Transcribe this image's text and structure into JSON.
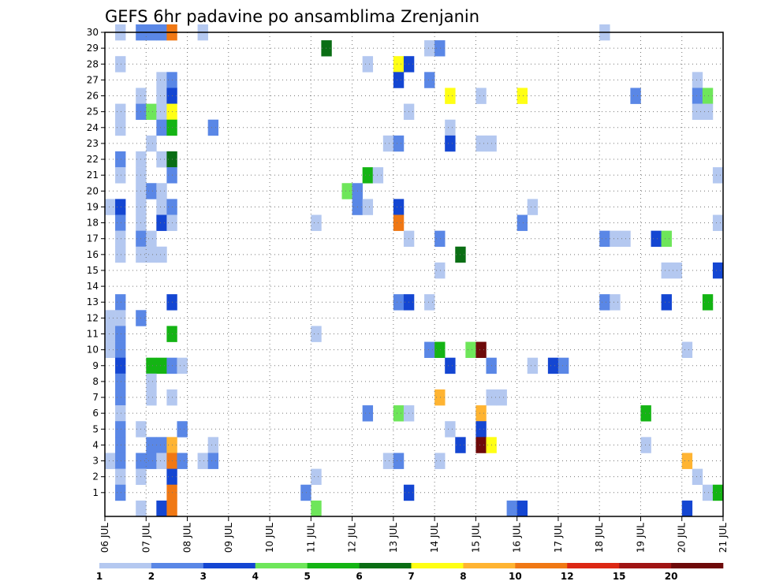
{
  "chart_data": {
    "type": "heatmap",
    "title": "GEFS 6hr padavine po ansamblima Zrenjanin",
    "y_tick_labels": [
      "1",
      "2",
      "3",
      "4",
      "5",
      "6",
      "7",
      "8",
      "9",
      "10",
      "11",
      "12",
      "13",
      "14",
      "15",
      "16",
      "17",
      "18",
      "19",
      "20",
      "21",
      "22",
      "23",
      "24",
      "25",
      "26",
      "27",
      "28",
      "29",
      "30"
    ],
    "x_tick_labels": [
      "06 JUL",
      "07 JUL",
      "08 JUL",
      "09 JUL",
      "10 JUL",
      "11 JUL",
      "12 JUL",
      "13 JUL",
      "14 JUL",
      "15 JUL",
      "16 JUL",
      "17 JUL",
      "18 JUL",
      "19 JUL",
      "20 JUL",
      "21 JUL"
    ],
    "ylim": [
      0,
      30
    ],
    "x_range_days": [
      0,
      15
    ],
    "grid": true,
    "colorbar": {
      "placement": "bottom",
      "boundaries": [
        "1",
        "2",
        "3",
        "4",
        "5",
        "6",
        "7",
        "8",
        "10",
        "12",
        "15",
        "20"
      ],
      "colors": [
        "#b4c8f0",
        "#5a87e6",
        "#1446d2",
        "#6ee65a",
        "#14b414",
        "#0a6e14",
        "#ffff14",
        "#ffb432",
        "#f07814",
        "#dc2814",
        "#a01414",
        "#6e0a0a"
      ]
    },
    "level_colors": [
      "#b4c8f0",
      "#5a87e6",
      "#1446d2",
      "#6ee65a",
      "#14b414",
      "#0a6e14",
      "#ffff14",
      "#ffb432",
      "#f07814",
      "#dc2814",
      "#a01414",
      "#6e0a0a"
    ],
    "cells": [
      {
        "m": 30,
        "s": 1,
        "l": 0
      },
      {
        "m": 30,
        "s": 3,
        "l": 1
      },
      {
        "m": 30,
        "s": 4,
        "l": 1
      },
      {
        "m": 30,
        "s": 5,
        "l": 1
      },
      {
        "m": 30,
        "s": 6,
        "l": 8
      },
      {
        "m": 30,
        "s": 9,
        "l": 0
      },
      {
        "m": 30,
        "s": 48,
        "l": 0
      },
      {
        "m": 29,
        "s": 21,
        "l": 5
      },
      {
        "m": 29,
        "s": 31,
        "l": 0
      },
      {
        "m": 29,
        "s": 32,
        "l": 1
      },
      {
        "m": 28,
        "s": 1,
        "l": 0
      },
      {
        "m": 28,
        "s": 25,
        "l": 0
      },
      {
        "m": 28,
        "s": 28,
        "l": 6
      },
      {
        "m": 28,
        "s": 29,
        "l": 2
      },
      {
        "m": 27,
        "s": 5,
        "l": 0
      },
      {
        "m": 27,
        "s": 6,
        "l": 1
      },
      {
        "m": 27,
        "s": 28,
        "l": 2
      },
      {
        "m": 27,
        "s": 31,
        "l": 1
      },
      {
        "m": 27,
        "s": 57,
        "l": 0
      },
      {
        "m": 26,
        "s": 3,
        "l": 0
      },
      {
        "m": 26,
        "s": 5,
        "l": 0
      },
      {
        "m": 26,
        "s": 6,
        "l": 2
      },
      {
        "m": 26,
        "s": 33,
        "l": 6
      },
      {
        "m": 26,
        "s": 36,
        "l": 0
      },
      {
        "m": 26,
        "s": 40,
        "l": 6
      },
      {
        "m": 26,
        "s": 51,
        "l": 1
      },
      {
        "m": 26,
        "s": 57,
        "l": 1
      },
      {
        "m": 26,
        "s": 58,
        "l": 3
      },
      {
        "m": 25,
        "s": 1,
        "l": 0
      },
      {
        "m": 25,
        "s": 3,
        "l": 1
      },
      {
        "m": 25,
        "s": 4,
        "l": 3
      },
      {
        "m": 25,
        "s": 5,
        "l": 0
      },
      {
        "m": 25,
        "s": 6,
        "l": 6
      },
      {
        "m": 25,
        "s": 29,
        "l": 0
      },
      {
        "m": 25,
        "s": 57,
        "l": 0
      },
      {
        "m": 25,
        "s": 58,
        "l": 0
      },
      {
        "m": 24,
        "s": 1,
        "l": 0
      },
      {
        "m": 24,
        "s": 5,
        "l": 1
      },
      {
        "m": 24,
        "s": 6,
        "l": 4
      },
      {
        "m": 24,
        "s": 10,
        "l": 1
      },
      {
        "m": 24,
        "s": 33,
        "l": 0
      },
      {
        "m": 23,
        "s": 4,
        "l": 0
      },
      {
        "m": 23,
        "s": 27,
        "l": 0
      },
      {
        "m": 23,
        "s": 28,
        "l": 1
      },
      {
        "m": 23,
        "s": 33,
        "l": 2
      },
      {
        "m": 23,
        "s": 36,
        "l": 0
      },
      {
        "m": 23,
        "s": 37,
        "l": 0
      },
      {
        "m": 22,
        "s": 1,
        "l": 1
      },
      {
        "m": 22,
        "s": 3,
        "l": 0
      },
      {
        "m": 22,
        "s": 5,
        "l": 0
      },
      {
        "m": 22,
        "s": 6,
        "l": 5
      },
      {
        "m": 21,
        "s": 1,
        "l": 0
      },
      {
        "m": 21,
        "s": 3,
        "l": 0
      },
      {
        "m": 21,
        "s": 6,
        "l": 1
      },
      {
        "m": 21,
        "s": 25,
        "l": 4
      },
      {
        "m": 21,
        "s": 26,
        "l": 0
      },
      {
        "m": 21,
        "s": 59,
        "l": 0
      },
      {
        "m": 20,
        "s": 3,
        "l": 0
      },
      {
        "m": 20,
        "s": 4,
        "l": 1
      },
      {
        "m": 20,
        "s": 5,
        "l": 0
      },
      {
        "m": 20,
        "s": 23,
        "l": 3
      },
      {
        "m": 20,
        "s": 24,
        "l": 1
      },
      {
        "m": 19,
        "s": 0,
        "l": 0
      },
      {
        "m": 19,
        "s": 1,
        "l": 2
      },
      {
        "m": 19,
        "s": 3,
        "l": 0
      },
      {
        "m": 19,
        "s": 5,
        "l": 0
      },
      {
        "m": 19,
        "s": 6,
        "l": 1
      },
      {
        "m": 19,
        "s": 24,
        "l": 1
      },
      {
        "m": 19,
        "s": 25,
        "l": 0
      },
      {
        "m": 19,
        "s": 28,
        "l": 2
      },
      {
        "m": 19,
        "s": 41,
        "l": 0
      },
      {
        "m": 18,
        "s": 1,
        "l": 1
      },
      {
        "m": 18,
        "s": 3,
        "l": 0
      },
      {
        "m": 18,
        "s": 5,
        "l": 2
      },
      {
        "m": 18,
        "s": 6,
        "l": 0
      },
      {
        "m": 18,
        "s": 20,
        "l": 0
      },
      {
        "m": 18,
        "s": 28,
        "l": 8
      },
      {
        "m": 18,
        "s": 40,
        "l": 1
      },
      {
        "m": 18,
        "s": 59,
        "l": 0
      },
      {
        "m": 17,
        "s": 1,
        "l": 0
      },
      {
        "m": 17,
        "s": 3,
        "l": 1
      },
      {
        "m": 17,
        "s": 4,
        "l": 0
      },
      {
        "m": 17,
        "s": 29,
        "l": 0
      },
      {
        "m": 17,
        "s": 32,
        "l": 1
      },
      {
        "m": 17,
        "s": 48,
        "l": 1
      },
      {
        "m": 17,
        "s": 49,
        "l": 0
      },
      {
        "m": 17,
        "s": 50,
        "l": 0
      },
      {
        "m": 17,
        "s": 53,
        "l": 2
      },
      {
        "m": 17,
        "s": 54,
        "l": 3
      },
      {
        "m": 16,
        "s": 1,
        "l": 0
      },
      {
        "m": 16,
        "s": 3,
        "l": 0
      },
      {
        "m": 16,
        "s": 4,
        "l": 0
      },
      {
        "m": 16,
        "s": 5,
        "l": 0
      },
      {
        "m": 16,
        "s": 34,
        "l": 5
      },
      {
        "m": 15,
        "s": 32,
        "l": 0
      },
      {
        "m": 15,
        "s": 54,
        "l": 0
      },
      {
        "m": 15,
        "s": 55,
        "l": 0
      },
      {
        "m": 15,
        "s": 59,
        "l": 2
      },
      {
        "m": 13,
        "s": 1,
        "l": 1
      },
      {
        "m": 13,
        "s": 6,
        "l": 2
      },
      {
        "m": 13,
        "s": 28,
        "l": 1
      },
      {
        "m": 13,
        "s": 29,
        "l": 2
      },
      {
        "m": 13,
        "s": 31,
        "l": 0
      },
      {
        "m": 13,
        "s": 48,
        "l": 1
      },
      {
        "m": 13,
        "s": 49,
        "l": 0
      },
      {
        "m": 13,
        "s": 54,
        "l": 2
      },
      {
        "m": 13,
        "s": 58,
        "l": 4
      },
      {
        "m": 12,
        "s": 0,
        "l": 0
      },
      {
        "m": 12,
        "s": 1,
        "l": 0
      },
      {
        "m": 12,
        "s": 3,
        "l": 1
      },
      {
        "m": 11,
        "s": 0,
        "l": 0
      },
      {
        "m": 11,
        "s": 1,
        "l": 1
      },
      {
        "m": 11,
        "s": 6,
        "l": 4
      },
      {
        "m": 11,
        "s": 20,
        "l": 0
      },
      {
        "m": 10,
        "s": 0,
        "l": 0
      },
      {
        "m": 10,
        "s": 1,
        "l": 1
      },
      {
        "m": 10,
        "s": 31,
        "l": 1
      },
      {
        "m": 10,
        "s": 32,
        "l": 4
      },
      {
        "m": 10,
        "s": 35,
        "l": 3
      },
      {
        "m": 10,
        "s": 36,
        "l": 11
      },
      {
        "m": 10,
        "s": 56,
        "l": 0
      },
      {
        "m": 9,
        "s": 1,
        "l": 2
      },
      {
        "m": 9,
        "s": 4,
        "l": 4
      },
      {
        "m": 9,
        "s": 5,
        "l": 4
      },
      {
        "m": 9,
        "s": 6,
        "l": 1
      },
      {
        "m": 9,
        "s": 7,
        "l": 0
      },
      {
        "m": 9,
        "s": 33,
        "l": 2
      },
      {
        "m": 9,
        "s": 37,
        "l": 1
      },
      {
        "m": 9,
        "s": 41,
        "l": 0
      },
      {
        "m": 9,
        "s": 43,
        "l": 2
      },
      {
        "m": 9,
        "s": 44,
        "l": 1
      },
      {
        "m": 8,
        "s": 1,
        "l": 1
      },
      {
        "m": 8,
        "s": 4,
        "l": 0
      },
      {
        "m": 7,
        "s": 1,
        "l": 1
      },
      {
        "m": 7,
        "s": 4,
        "l": 0
      },
      {
        "m": 7,
        "s": 6,
        "l": 0
      },
      {
        "m": 7,
        "s": 32,
        "l": 7
      },
      {
        "m": 7,
        "s": 37,
        "l": 0
      },
      {
        "m": 7,
        "s": 38,
        "l": 0
      },
      {
        "m": 6,
        "s": 1,
        "l": 0
      },
      {
        "m": 6,
        "s": 25,
        "l": 1
      },
      {
        "m": 6,
        "s": 28,
        "l": 3
      },
      {
        "m": 6,
        "s": 29,
        "l": 0
      },
      {
        "m": 6,
        "s": 36,
        "l": 7
      },
      {
        "m": 6,
        "s": 52,
        "l": 4
      },
      {
        "m": 5,
        "s": 1,
        "l": 1
      },
      {
        "m": 5,
        "s": 3,
        "l": 0
      },
      {
        "m": 5,
        "s": 7,
        "l": 1
      },
      {
        "m": 5,
        "s": 33,
        "l": 0
      },
      {
        "m": 5,
        "s": 36,
        "l": 2
      },
      {
        "m": 4,
        "s": 1,
        "l": 1
      },
      {
        "m": 4,
        "s": 4,
        "l": 1
      },
      {
        "m": 4,
        "s": 5,
        "l": 1
      },
      {
        "m": 4,
        "s": 6,
        "l": 7
      },
      {
        "m": 4,
        "s": 10,
        "l": 0
      },
      {
        "m": 4,
        "s": 34,
        "l": 2
      },
      {
        "m": 4,
        "s": 36,
        "l": 11
      },
      {
        "m": 4,
        "s": 37,
        "l": 6
      },
      {
        "m": 4,
        "s": 52,
        "l": 0
      },
      {
        "m": 3,
        "s": 0,
        "l": 0
      },
      {
        "m": 3,
        "s": 1,
        "l": 1
      },
      {
        "m": 3,
        "s": 3,
        "l": 1
      },
      {
        "m": 3,
        "s": 4,
        "l": 1
      },
      {
        "m": 3,
        "s": 5,
        "l": 0
      },
      {
        "m": 3,
        "s": 6,
        "l": 8
      },
      {
        "m": 3,
        "s": 7,
        "l": 1
      },
      {
        "m": 3,
        "s": 9,
        "l": 0
      },
      {
        "m": 3,
        "s": 10,
        "l": 1
      },
      {
        "m": 3,
        "s": 27,
        "l": 0
      },
      {
        "m": 3,
        "s": 28,
        "l": 1
      },
      {
        "m": 3,
        "s": 32,
        "l": 0
      },
      {
        "m": 3,
        "s": 56,
        "l": 7
      },
      {
        "m": 2,
        "s": 1,
        "l": 0
      },
      {
        "m": 2,
        "s": 3,
        "l": 0
      },
      {
        "m": 2,
        "s": 6,
        "l": 2
      },
      {
        "m": 2,
        "s": 20,
        "l": 0
      },
      {
        "m": 2,
        "s": 57,
        "l": 0
      },
      {
        "m": 1,
        "s": 1,
        "l": 1
      },
      {
        "m": 1,
        "s": 6,
        "l": 8
      },
      {
        "m": 1,
        "s": 19,
        "l": 1
      },
      {
        "m": 1,
        "s": 29,
        "l": 2
      },
      {
        "m": 1,
        "s": 58,
        "l": 0
      },
      {
        "m": 1,
        "s": 59,
        "l": 4
      },
      {
        "m": 0,
        "s": 3,
        "l": 0
      },
      {
        "m": 0,
        "s": 5,
        "l": 2
      },
      {
        "m": 0,
        "s": 6,
        "l": 8
      },
      {
        "m": 0,
        "s": 20,
        "l": 3
      },
      {
        "m": 0,
        "s": 39,
        "l": 1
      },
      {
        "m": 0,
        "s": 40,
        "l": 2
      },
      {
        "m": 0,
        "s": 56,
        "l": 2
      }
    ]
  }
}
